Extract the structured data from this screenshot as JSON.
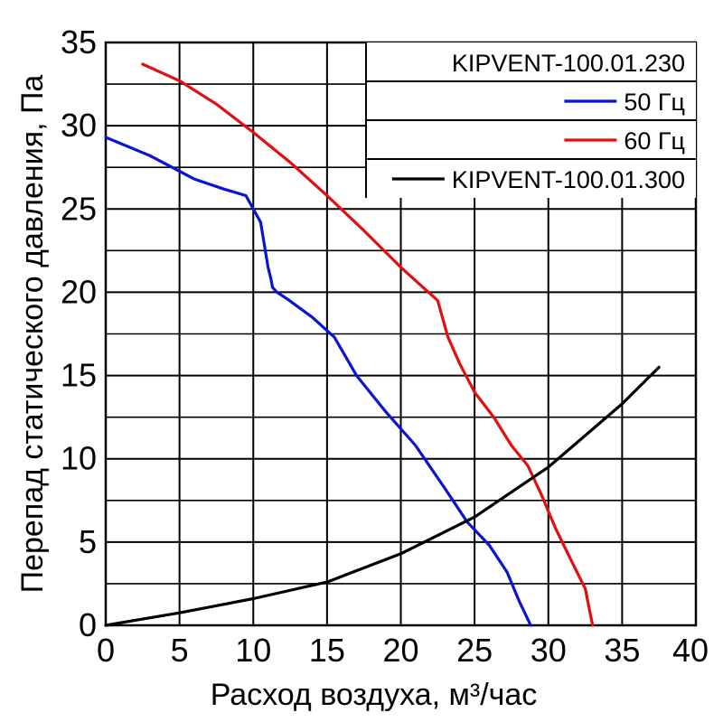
{
  "chart_data": {
    "type": "line",
    "xlabel": "Расход воздуха, м³/час",
    "ylabel": "Перепад статического давления, Па",
    "xlim": [
      0,
      40
    ],
    "ylim": [
      0,
      35
    ],
    "x_ticks": [
      "0",
      "5",
      "10",
      "15",
      "20",
      "25",
      "30",
      "35",
      "40"
    ],
    "y_ticks": [
      "0",
      "5",
      "10",
      "15",
      "20",
      "25",
      "30",
      "35"
    ],
    "grid": true,
    "legend_position": "top-right",
    "legend_title": "KIPVENT-100.01.230",
    "series": [
      {
        "name": "50 Гц",
        "color": "#0a14d2",
        "x": [
          0,
          3,
          6,
          8,
          9.5,
          10.5,
          11,
          11.2,
          11.3,
          11.6,
          12.3,
          14,
          15.5,
          17,
          19,
          21,
          23,
          24.5,
          26,
          27.2,
          28,
          28.8
        ],
        "y": [
          29.3,
          28.2,
          26.8,
          26.2,
          25.8,
          24.2,
          21.5,
          20.8,
          20.3,
          20.0,
          19.6,
          18.5,
          17.3,
          15.0,
          12.8,
          10.8,
          8.2,
          6.2,
          4.8,
          3.2,
          1.5,
          0
        ]
      },
      {
        "name": "60 Гц",
        "color": "#e10f0f",
        "x": [
          2.5,
          5,
          7.5,
          10,
          12.5,
          15,
          17.5,
          20,
          22.5,
          23.2,
          24,
          25,
          26.3,
          27.5,
          28.6,
          29.5,
          30.5,
          31.6,
          32.5,
          33
        ],
        "y": [
          33.7,
          32.7,
          31.3,
          29.6,
          27.8,
          25.8,
          23.7,
          21.5,
          19.5,
          17.3,
          15.7,
          14.0,
          12.5,
          10.8,
          9.6,
          7.9,
          5.8,
          3.8,
          2.2,
          0
        ]
      },
      {
        "name": "KIPVENT-100.01.300",
        "color": "#000000",
        "x": [
          0,
          5,
          10,
          15,
          20,
          25,
          30,
          35,
          37.5
        ],
        "y": [
          0,
          0.75,
          1.6,
          2.6,
          4.3,
          6.5,
          9.5,
          13.3,
          15.5
        ]
      }
    ]
  }
}
